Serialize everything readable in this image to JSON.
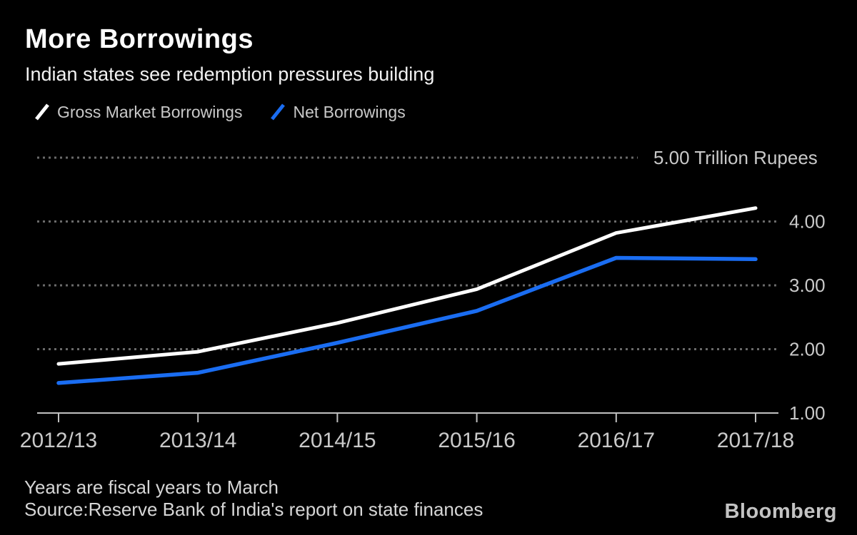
{
  "header": {
    "title": "More Borrowings",
    "subtitle": "Indian states see redemption pressures building"
  },
  "legend": {
    "items": [
      {
        "label": "Gross Market Borrowings",
        "color": "#ffffff"
      },
      {
        "label": "Net Borrowings",
        "color": "#1a6df2"
      }
    ]
  },
  "chart_data": {
    "type": "line",
    "title": "More Borrowings",
    "subtitle": "Indian states see redemption pressures building",
    "categories": [
      "2012/13",
      "2013/14",
      "2014/15",
      "2015/16",
      "2016/17",
      "2017/18"
    ],
    "series": [
      {
        "name": "Gross Market Borrowings",
        "color": "#ffffff",
        "values": [
          1.77,
          1.96,
          2.41,
          2.94,
          3.82,
          4.21
        ]
      },
      {
        "name": "Net Borrowings",
        "color": "#1a6df2",
        "values": [
          1.47,
          1.63,
          2.1,
          2.6,
          3.43,
          3.41
        ]
      }
    ],
    "y_axis": {
      "unit": "Trillion Rupees",
      "range": [
        1,
        5
      ],
      "ticks": [
        1,
        2,
        3,
        4,
        5
      ],
      "tick_labels": [
        "1.00",
        "2.00",
        "3.00",
        "4.00",
        "5.00 Trillion Rupees"
      ],
      "grid": "dotted",
      "label_side": "right"
    },
    "x_axis": {
      "note": "Years are fiscal years to March"
    },
    "legend_position": "top-left",
    "background": "#000000",
    "colors": {
      "grid": "#6a6a6a",
      "axis": "#c0c0c0",
      "tick_label": "#c9c9c9"
    }
  },
  "footer": {
    "note": "Years are fiscal years to March",
    "source": "Source:Reserve Bank of India's report on state finances",
    "brand": "Bloomberg"
  }
}
